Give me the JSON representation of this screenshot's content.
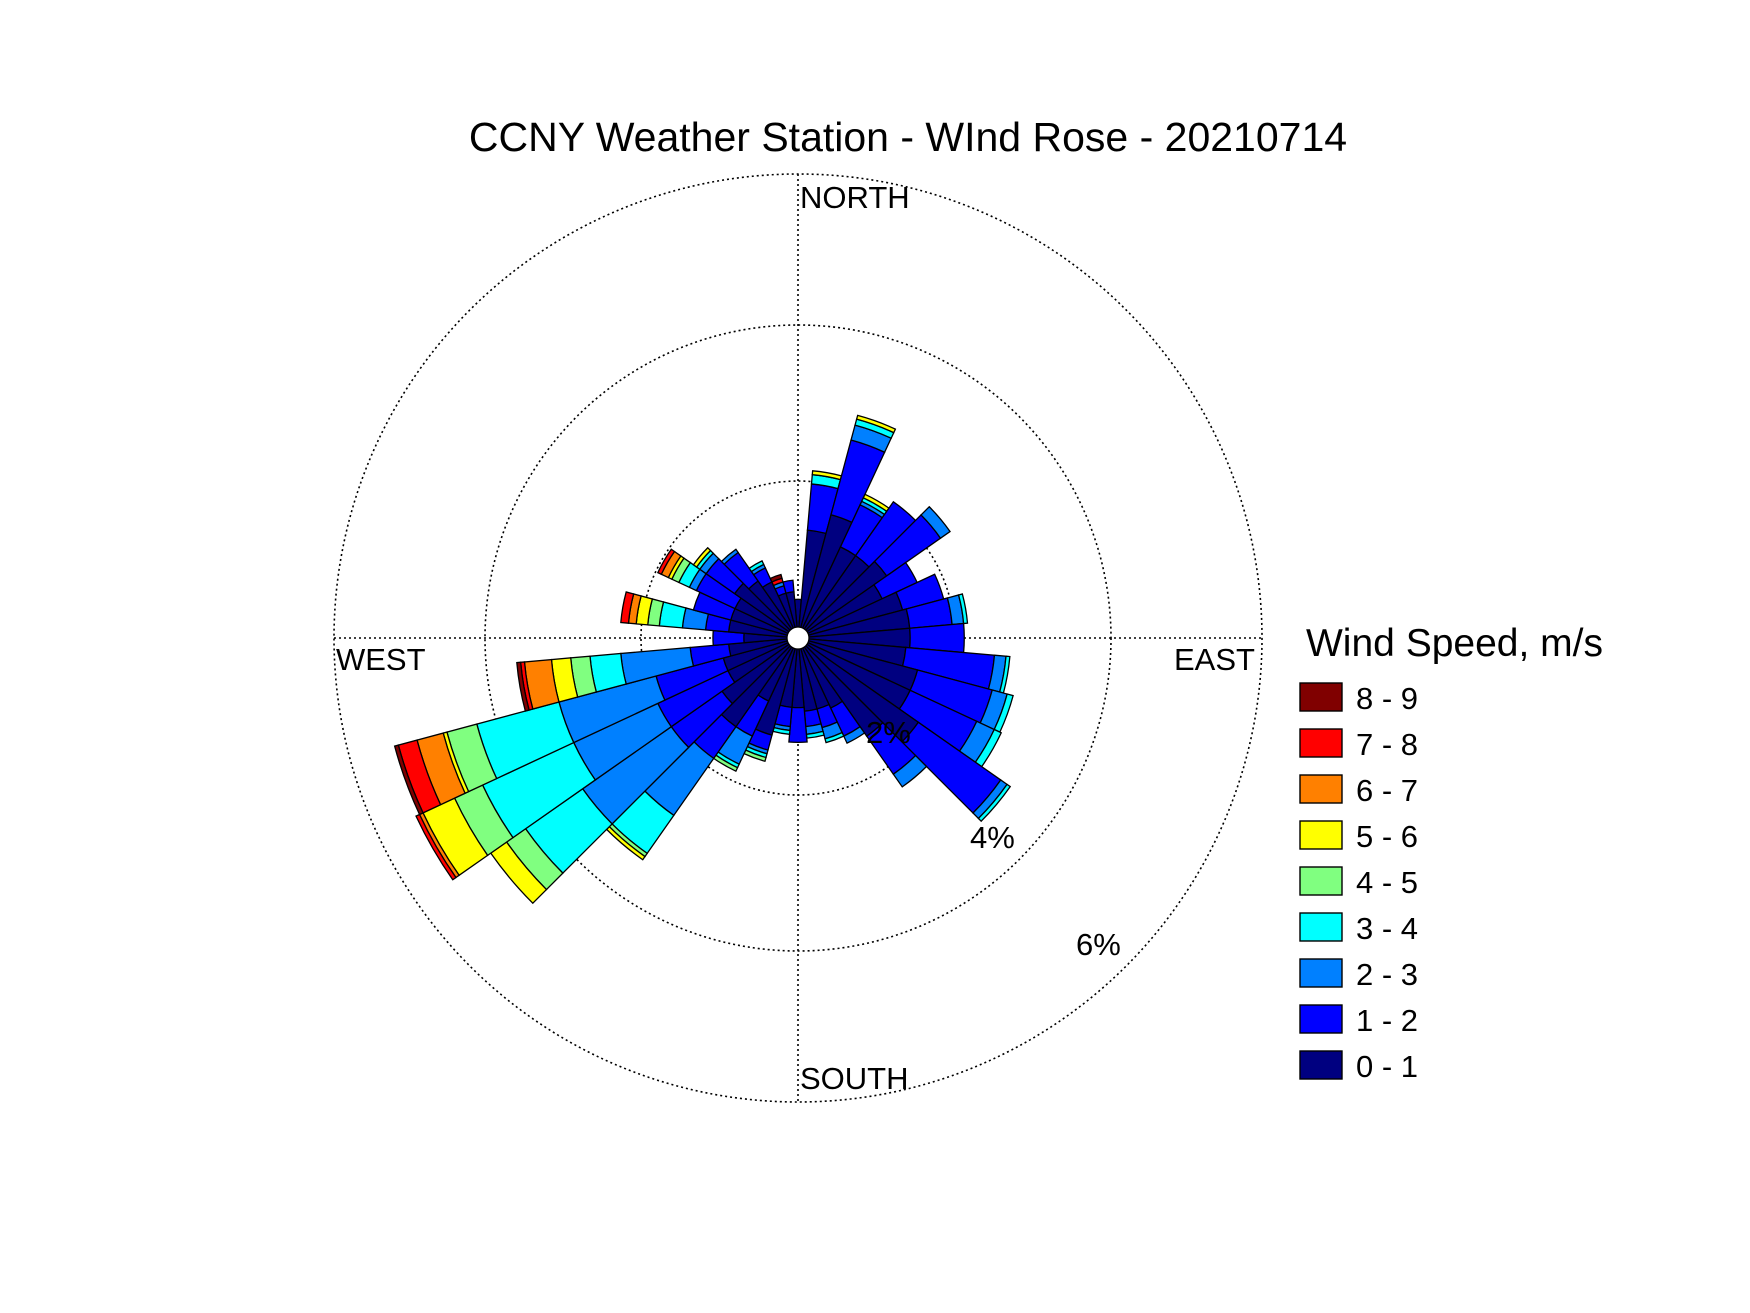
{
  "chart_data": {
    "type": "windrose",
    "title": "CCNY Weather Station - WInd Rose - 20210714",
    "directions": {
      "north": "NORTH",
      "east": "EAST",
      "south": "SOUTH",
      "west": "WEST"
    },
    "radial_ticks": [
      {
        "value": 2,
        "label": "2%"
      },
      {
        "value": 4,
        "label": "4%"
      },
      {
        "value": 6,
        "label": "6%"
      }
    ],
    "rmax": 6,
    "legend_title": "Wind Speed, m/s",
    "bins": [
      {
        "label": "0 - 1",
        "color": "#000080"
      },
      {
        "label": "1 - 2",
        "color": "#0000ff"
      },
      {
        "label": "2 - 3",
        "color": "#0080ff"
      },
      {
        "label": "3 - 4",
        "color": "#00ffff"
      },
      {
        "label": "4 - 5",
        "color": "#80ff80"
      },
      {
        "label": "5 - 6",
        "color": "#ffff00"
      },
      {
        "label": "6 - 7",
        "color": "#ff8000"
      },
      {
        "label": "7 - 8",
        "color": "#ff0000"
      },
      {
        "label": "8 - 9",
        "color": "#800000"
      }
    ],
    "sector_width_deg": 10,
    "sectors": [
      {
        "dir": 0,
        "values": [
          0.5,
          0.0
        ]
      },
      {
        "dir": 10,
        "values": [
          1.4,
          0.6,
          0,
          0.12,
          0,
          0.05
        ]
      },
      {
        "dir": 20,
        "values": [
          1.65,
          1.0,
          0.2,
          0.08,
          0,
          0.05
        ]
      },
      {
        "dir": 30,
        "values": [
          1.3,
          0.6,
          0.05,
          0.05,
          0,
          0.05
        ]
      },
      {
        "dir": 40,
        "values": [
          1.3,
          0.85
        ]
      },
      {
        "dir": 50,
        "values": [
          1.4,
          0.85,
          0.15
        ]
      },
      {
        "dir": 60,
        "values": [
          1.2,
          0.5
        ]
      },
      {
        "dir": 70,
        "values": [
          1.4,
          0.55
        ]
      },
      {
        "dir": 80,
        "values": [
          1.45,
          0.55,
          0.15,
          0.05
        ]
      },
      {
        "dir": 90,
        "values": [
          1.45,
          0.7
        ]
      },
      {
        "dir": 100,
        "values": [
          1.4,
          1.15,
          0.15,
          0.05
        ]
      },
      {
        "dir": 110,
        "values": [
          1.6,
          1.0,
          0.2,
          0.08
        ]
      },
      {
        "dir": 120,
        "values": [
          1.6,
          0.95,
          0.25,
          0.1
        ]
      },
      {
        "dir": 130,
        "values": [
          1.9,
          1.3,
          0.1,
          0.05
        ]
      },
      {
        "dir": 140,
        "values": [
          1.55,
          0.6,
          0.2
        ]
      },
      {
        "dir": 150,
        "values": [
          1.0,
          0.4,
          0.1
        ]
      },
      {
        "dir": 160,
        "values": [
          0.95,
          0.25,
          0.15,
          0.05
        ]
      },
      {
        "dir": 170,
        "values": [
          0.95,
          0.2,
          0.1,
          0.05
        ]
      },
      {
        "dir": 180,
        "values": [
          0.9,
          0.45
        ]
      },
      {
        "dir": 190,
        "values": [
          0.9,
          0.25,
          0.05,
          0.05
        ]
      },
      {
        "dir": 200,
        "values": [
          1.3,
          0.2,
          0.05,
          0.05,
          0.05
        ]
      },
      {
        "dir": 210,
        "values": [
          0.9,
          0.5,
          0.4,
          0.05,
          0.05
        ]
      },
      {
        "dir": 220,
        "values": [
          1.4,
          0.5,
          0.9,
          0.6,
          0.05,
          0.05
        ]
      },
      {
        "dir": 230,
        "values": [
          1.2,
          0.8,
          1.4,
          0.9,
          0.3,
          0.25
        ]
      },
      {
        "dir": 240,
        "values": [
          1.0,
          1.0,
          1.2,
          1.3,
          0.4,
          0.45,
          0.05,
          0.05
        ]
      },
      {
        "dir": 250,
        "values": [
          1.0,
          0.9,
          1.3,
          1.1,
          0.4,
          0.05,
          0.35,
          0.25,
          0.05
        ]
      },
      {
        "dir": 260,
        "values": [
          0.9,
          0.5,
          0.9,
          0.4,
          0.25,
          0.25,
          0.35,
          0.05,
          0.05
        ]
      },
      {
        "dir": 270,
        "values": [
          0.7,
          0.4,
          0.0,
          0.0,
          0.0,
          0.0,
          0.0,
          0.0,
          0.0
        ]
      },
      {
        "dir": 280,
        "values": [
          0.9,
          0.3,
          0.3,
          0.3,
          0.15,
          0.15,
          0.1,
          0.1
        ]
      },
      {
        "dir": 290,
        "values": [
          0.9,
          0.5
        ]
      },
      {
        "dir": 300,
        "values": [
          0.9,
          0.55,
          0.1,
          0.15,
          0.1,
          0.05,
          0.1,
          0.05
        ]
      },
      {
        "dir": 310,
        "values": [
          1.0,
          0.45,
          0.1,
          0.05,
          0,
          0.05
        ]
      },
      {
        "dir": 320,
        "values": [
          0.9,
          0.45,
          0.05
        ]
      },
      {
        "dir": 330,
        "values": [
          0.8,
          0.2,
          0.05,
          0.05
        ]
      },
      {
        "dir": 340,
        "values": [
          0.6,
          0.1,
          0.05,
          0,
          0,
          0,
          0,
          0.05,
          0.05
        ]
      },
      {
        "dir": 350,
        "values": [
          0.6,
          0.15
        ]
      }
    ]
  }
}
